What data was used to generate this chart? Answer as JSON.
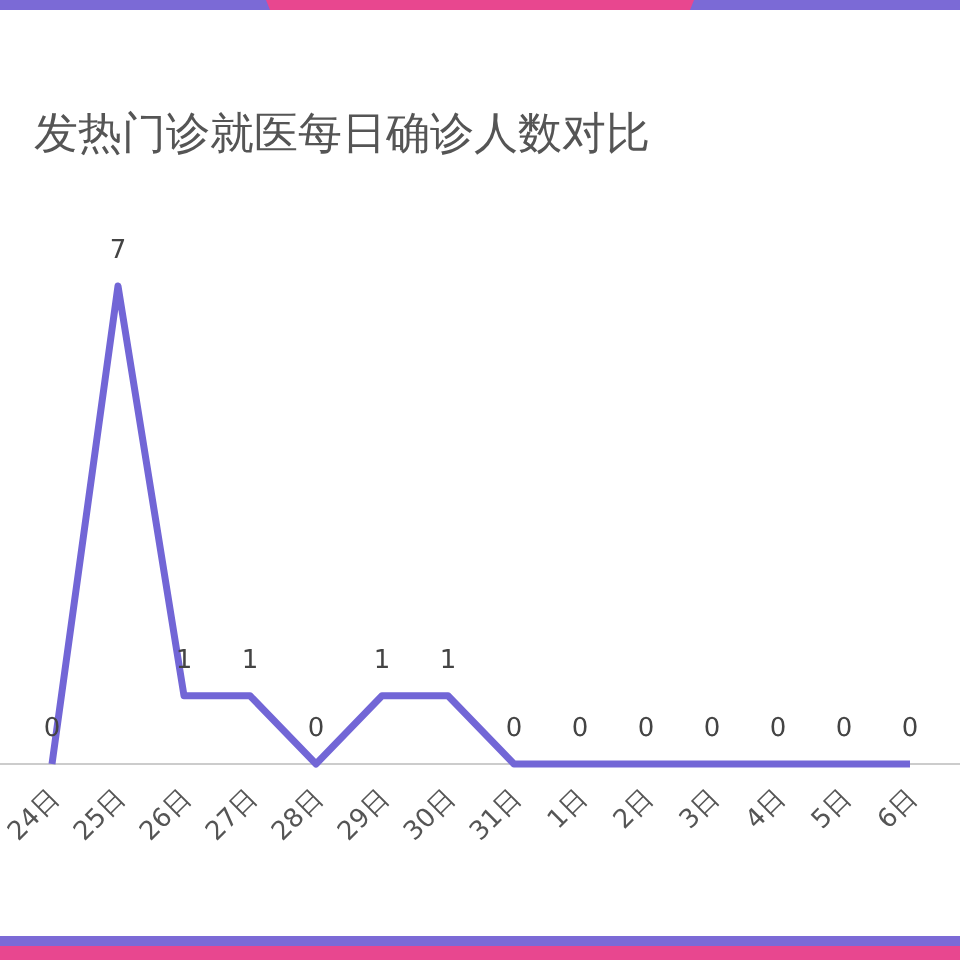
{
  "chart_data": {
    "type": "line",
    "title": "发热门诊就医每日确诊人数对比",
    "categories": [
      "24日",
      "25日",
      "26日",
      "27日",
      "28日",
      "29日",
      "30日",
      "31日",
      "1日",
      "2日",
      "3日",
      "4日",
      "5日",
      "6日"
    ],
    "series": [
      {
        "color": "#7266d6",
        "values": [
          0,
          7,
          1,
          1,
          0,
          1,
          1,
          0,
          0,
          0,
          0,
          0,
          0,
          0
        ]
      }
    ],
    "data_labels": true,
    "marker": "none",
    "line_style": "solid"
  }
}
